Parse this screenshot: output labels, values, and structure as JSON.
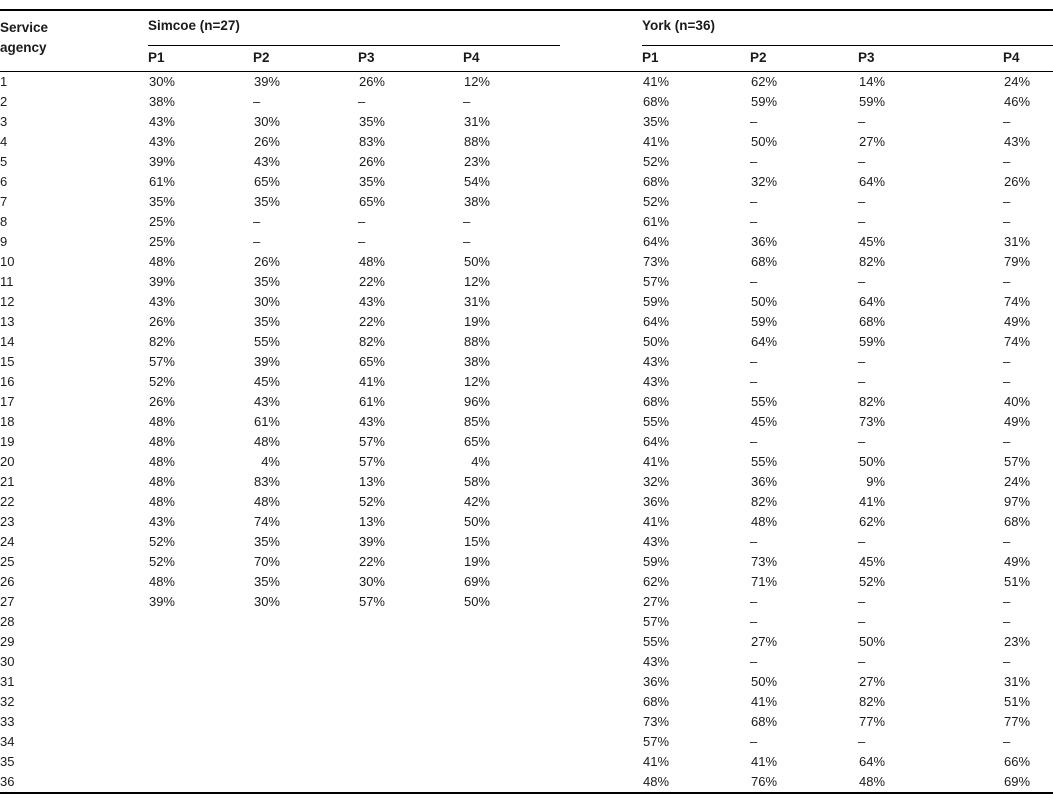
{
  "table": {
    "row_header": "Service agency",
    "groups": [
      {
        "label": "Simcoe (n=27)",
        "columns": [
          "P1",
          "P2",
          "P3",
          "P4"
        ]
      },
      {
        "label": "York (n=36)",
        "columns": [
          "P1",
          "P2",
          "P3",
          "P4"
        ]
      }
    ],
    "missing_marker": "–",
    "rows": [
      {
        "n": "1",
        "s": [
          "30%",
          "39%",
          "26%",
          "12%"
        ],
        "y": [
          "41%",
          "62%",
          "14%",
          "24%"
        ]
      },
      {
        "n": "2",
        "s": [
          "38%",
          "–",
          "–",
          "–"
        ],
        "y": [
          "68%",
          "59%",
          "59%",
          "46%"
        ]
      },
      {
        "n": "3",
        "s": [
          "43%",
          "30%",
          "35%",
          "31%"
        ],
        "y": [
          "35%",
          "–",
          "–",
          "–"
        ]
      },
      {
        "n": "4",
        "s": [
          "43%",
          "26%",
          "83%",
          "88%"
        ],
        "y": [
          "41%",
          "50%",
          "27%",
          "43%"
        ]
      },
      {
        "n": "5",
        "s": [
          "39%",
          "43%",
          "26%",
          "23%"
        ],
        "y": [
          "52%",
          "–",
          "–",
          "–"
        ]
      },
      {
        "n": "6",
        "s": [
          "61%",
          "65%",
          "35%",
          "54%"
        ],
        "y": [
          "68%",
          "32%",
          "64%",
          "26%"
        ]
      },
      {
        "n": "7",
        "s": [
          "35%",
          "35%",
          "65%",
          "38%"
        ],
        "y": [
          "52%",
          "–",
          "–",
          "–"
        ]
      },
      {
        "n": "8",
        "s": [
          "25%",
          "–",
          "–",
          "–"
        ],
        "y": [
          "61%",
          "–",
          "–",
          "–"
        ]
      },
      {
        "n": "9",
        "s": [
          "25%",
          "–",
          "–",
          "–"
        ],
        "y": [
          "64%",
          "36%",
          "45%",
          "31%"
        ]
      },
      {
        "n": "10",
        "s": [
          "48%",
          "26%",
          "48%",
          "50%"
        ],
        "y": [
          "73%",
          "68%",
          "82%",
          "79%"
        ]
      },
      {
        "n": "11",
        "s": [
          "39%",
          "35%",
          "22%",
          "12%"
        ],
        "y": [
          "57%",
          "–",
          "–",
          "–"
        ]
      },
      {
        "n": "12",
        "s": [
          "43%",
          "30%",
          "43%",
          "31%"
        ],
        "y": [
          "59%",
          "50%",
          "64%",
          "74%"
        ]
      },
      {
        "n": "13",
        "s": [
          "26%",
          "35%",
          "22%",
          "19%"
        ],
        "y": [
          "64%",
          "59%",
          "68%",
          "49%"
        ]
      },
      {
        "n": "14",
        "s": [
          "82%",
          "55%",
          "82%",
          "88%"
        ],
        "y": [
          "50%",
          "64%",
          "59%",
          "74%"
        ]
      },
      {
        "n": "15",
        "s": [
          "57%",
          "39%",
          "65%",
          "38%"
        ],
        "y": [
          "43%",
          "–",
          "–",
          "–"
        ]
      },
      {
        "n": "16",
        "s": [
          "52%",
          "45%",
          "41%",
          "12%"
        ],
        "y": [
          "43%",
          "–",
          "–",
          "–"
        ]
      },
      {
        "n": "17",
        "s": [
          "26%",
          "43%",
          "61%",
          "96%"
        ],
        "y": [
          "68%",
          "55%",
          "82%",
          "40%"
        ]
      },
      {
        "n": "18",
        "s": [
          "48%",
          "61%",
          "43%",
          "85%"
        ],
        "y": [
          "55%",
          "45%",
          "73%",
          "49%"
        ]
      },
      {
        "n": "19",
        "s": [
          "48%",
          "48%",
          "57%",
          "65%"
        ],
        "y": [
          "64%",
          "–",
          "–",
          "–"
        ]
      },
      {
        "n": "20",
        "s": [
          "48%",
          "4%",
          "57%",
          "4%"
        ],
        "y": [
          "41%",
          "55%",
          "50%",
          "57%"
        ]
      },
      {
        "n": "21",
        "s": [
          "48%",
          "83%",
          "13%",
          "58%"
        ],
        "y": [
          "32%",
          "36%",
          "9%",
          "24%"
        ]
      },
      {
        "n": "22",
        "s": [
          "48%",
          "48%",
          "52%",
          "42%"
        ],
        "y": [
          "36%",
          "82%",
          "41%",
          "97%"
        ]
      },
      {
        "n": "23",
        "s": [
          "43%",
          "74%",
          "13%",
          "50%"
        ],
        "y": [
          "41%",
          "48%",
          "62%",
          "68%"
        ]
      },
      {
        "n": "24",
        "s": [
          "52%",
          "35%",
          "39%",
          "15%"
        ],
        "y": [
          "43%",
          "–",
          "–",
          "–"
        ]
      },
      {
        "n": "25",
        "s": [
          "52%",
          "70%",
          "22%",
          "19%"
        ],
        "y": [
          "59%",
          "73%",
          "45%",
          "49%"
        ]
      },
      {
        "n": "26",
        "s": [
          "48%",
          "35%",
          "30%",
          "69%"
        ],
        "y": [
          "62%",
          "71%",
          "52%",
          "51%"
        ]
      },
      {
        "n": "27",
        "s": [
          "39%",
          "30%",
          "57%",
          "50%"
        ],
        "y": [
          "27%",
          "–",
          "–",
          "–"
        ]
      },
      {
        "n": "28",
        "s": [
          "",
          "",
          "",
          ""
        ],
        "y": [
          "57%",
          "–",
          "–",
          "–"
        ]
      },
      {
        "n": "29",
        "s": [
          "",
          "",
          "",
          ""
        ],
        "y": [
          "55%",
          "27%",
          "50%",
          "23%"
        ]
      },
      {
        "n": "30",
        "s": [
          "",
          "",
          "",
          ""
        ],
        "y": [
          "43%",
          "–",
          "–",
          "–"
        ]
      },
      {
        "n": "31",
        "s": [
          "",
          "",
          "",
          ""
        ],
        "y": [
          "36%",
          "50%",
          "27%",
          "31%"
        ]
      },
      {
        "n": "32",
        "s": [
          "",
          "",
          "",
          ""
        ],
        "y": [
          "68%",
          "41%",
          "82%",
          "51%"
        ]
      },
      {
        "n": "33",
        "s": [
          "",
          "",
          "",
          ""
        ],
        "y": [
          "73%",
          "68%",
          "77%",
          "77%"
        ]
      },
      {
        "n": "34",
        "s": [
          "",
          "",
          "",
          ""
        ],
        "y": [
          "57%",
          "–",
          "–",
          "–"
        ]
      },
      {
        "n": "35",
        "s": [
          "",
          "",
          "",
          ""
        ],
        "y": [
          "41%",
          "41%",
          "64%",
          "66%"
        ]
      },
      {
        "n": "36",
        "s": [
          "",
          "",
          "",
          ""
        ],
        "y": [
          "48%",
          "76%",
          "48%",
          "69%"
        ]
      }
    ]
  }
}
